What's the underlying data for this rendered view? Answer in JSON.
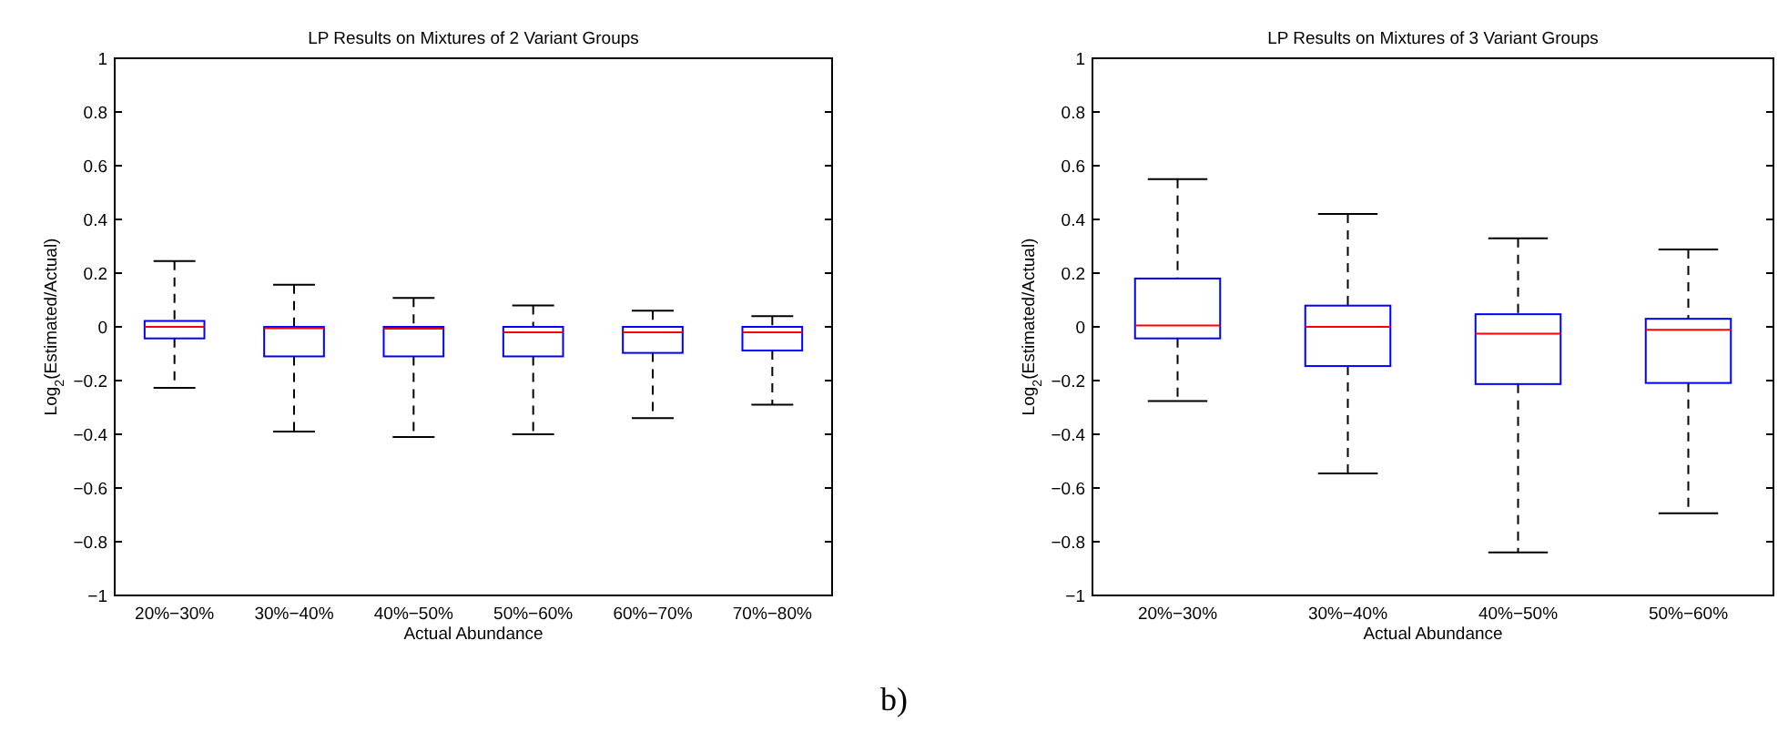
{
  "chart_data": [
    {
      "type": "box",
      "title": "LP Results on Mixtures of 2 Variant Groups",
      "xlabel": "Actual Abundance",
      "ylabel": "Log$_{2}$(Estimated/Actual)",
      "categories": [
        "20%−30%",
        "30%−40%",
        "40%−50%",
        "50%−60%",
        "60%−70%",
        "70%−80%"
      ],
      "color": "#0000ff",
      "boxes": [
        {
          "low": -0.227,
          "q1": -0.043,
          "median": 0,
          "q3": 0.022,
          "high": 0.245
        },
        {
          "low": -0.39,
          "q1": -0.11,
          "median": -0.005,
          "q3": 0,
          "high": 0.157
        },
        {
          "low": -0.41,
          "q1": -0.11,
          "median": -0.007,
          "q3": 0,
          "high": 0.108
        },
        {
          "low": -0.4,
          "q1": -0.11,
          "median": -0.02,
          "q3": 0,
          "high": 0.08
        },
        {
          "low": -0.34,
          "q1": -0.097,
          "median": -0.02,
          "q3": 0,
          "high": 0.06
        },
        {
          "low": -0.29,
          "q1": -0.088,
          "median": -0.02,
          "q3": 0,
          "high": 0.04
        }
      ],
      "ylim": [
        -1,
        1
      ],
      "yticks": [
        -1,
        -0.8,
        -0.6,
        -0.4,
        -0.2,
        0,
        0.2,
        0.4,
        0.6,
        0.8,
        1
      ],
      "grid": false,
      "annotations": [
        "b)"
      ]
    },
    {
      "type": "box",
      "title": "LP Results on Mixtures of 3 Variant Groups",
      "xlabel": "Actual Abundance",
      "ylabel": "Log$_{2}$(Estimated/Actual)",
      "categories": [
        "20%−30%",
        "30%−40%",
        "40%−50%",
        "50%−60%"
      ],
      "color": "#0000ff",
      "boxes": [
        {
          "low": -0.276,
          "q1": -0.043,
          "median": 0.005,
          "q3": 0.18,
          "high": 0.55
        },
        {
          "low": -0.546,
          "q1": -0.146,
          "median": 0,
          "q3": 0.079,
          "high": 0.42
        },
        {
          "low": -0.84,
          "q1": -0.213,
          "median": -0.025,
          "q3": 0.047,
          "high": 0.33
        },
        {
          "low": -0.694,
          "q1": -0.209,
          "median": -0.011,
          "q3": 0.03,
          "high": 0.288
        }
      ],
      "ylim": [
        -1,
        1
      ],
      "yticks": [
        -1,
        -0.8,
        -0.6,
        -0.4,
        -0.2,
        0,
        0.2,
        0.4,
        0.6,
        0.8,
        1
      ],
      "grid": false
    }
  ]
}
